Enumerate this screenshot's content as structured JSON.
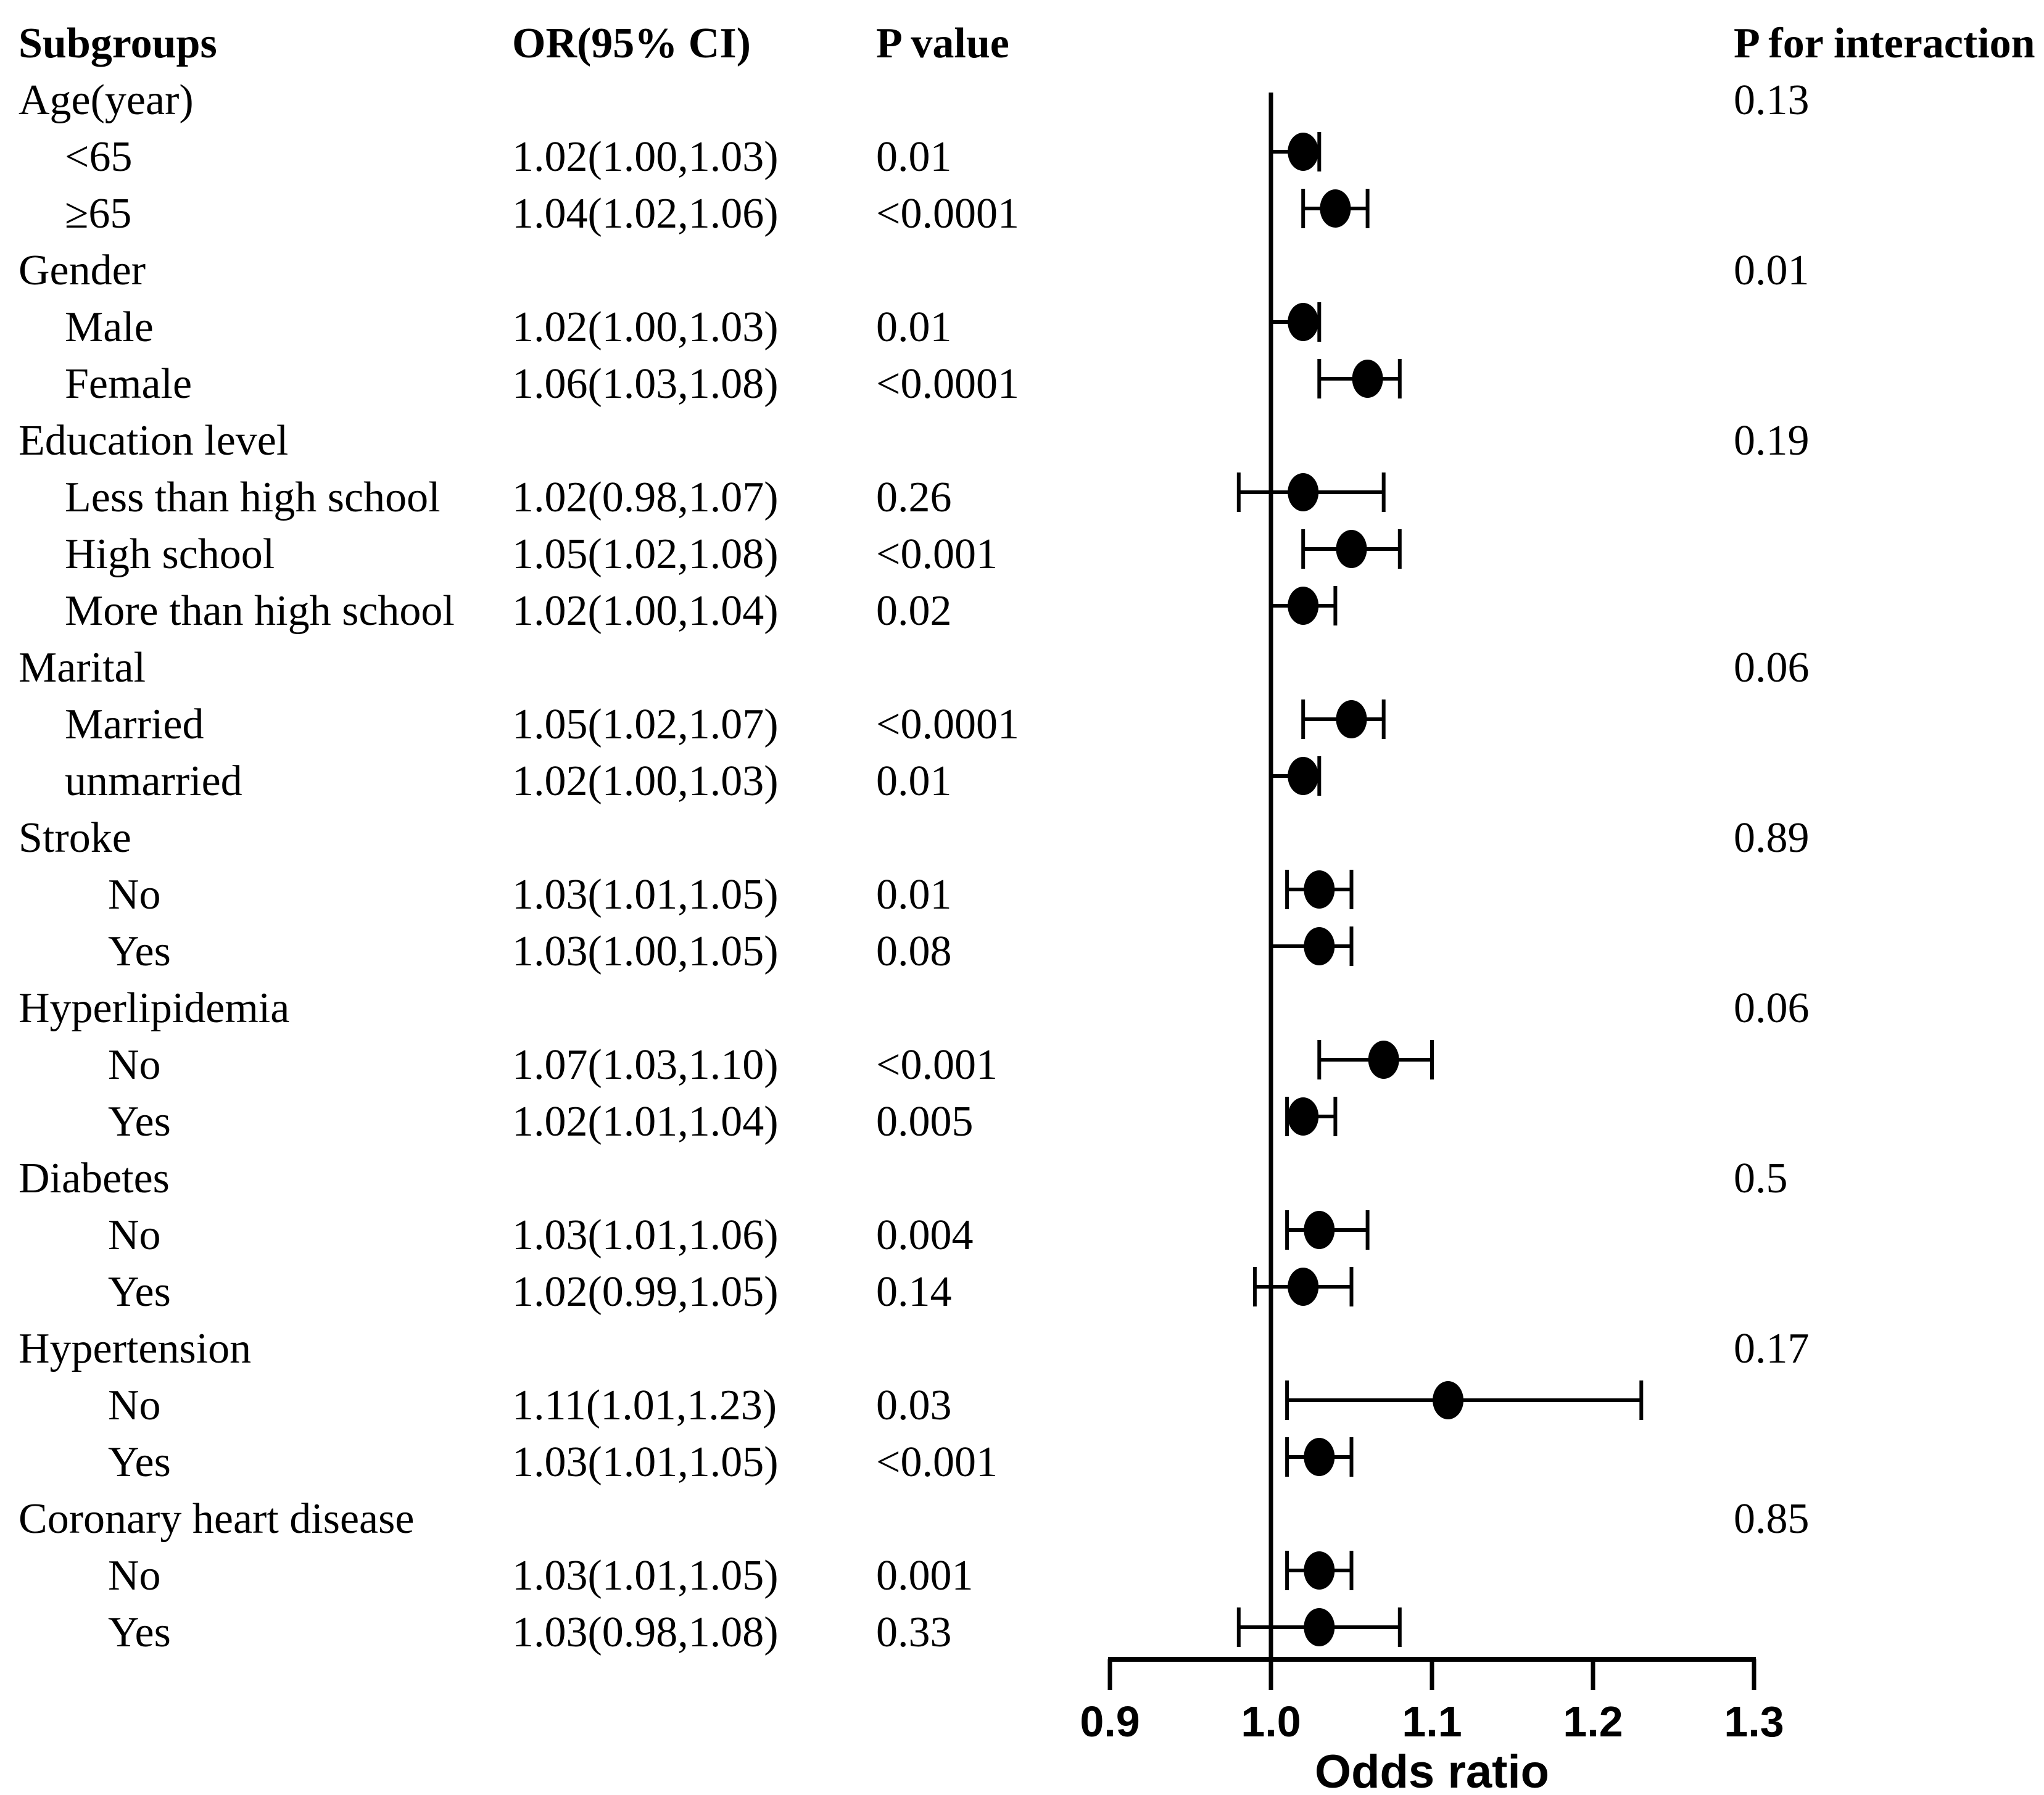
{
  "columns": {
    "subgroups": "Subgroups",
    "or_ci": "OR(95% CI)",
    "p_value": "P value",
    "p_interaction": "P for interaction"
  },
  "colors": {
    "foreground": "#000000",
    "background": "#ffffff"
  },
  "chart_data": {
    "type": "scatter",
    "subtype": "forest",
    "title": "",
    "xlabel": "Odds ratio",
    "xlim": [
      0.9,
      1.3
    ],
    "xticks": [
      0.9,
      1.0,
      1.1,
      1.2,
      1.3
    ],
    "reference_line": 1.0,
    "grid": false,
    "legend": false,
    "rows": [
      {
        "kind": "group",
        "label": "Age(year)",
        "p_interaction": "0.13"
      },
      {
        "kind": "item",
        "label": "<65",
        "indent": 1,
        "or": 1.02,
        "ci_low": 1.0,
        "ci_high": 1.03,
        "or_ci": "1.02(1.00,1.03)",
        "p_value": "0.01"
      },
      {
        "kind": "item",
        "label": "≥65",
        "indent": 1,
        "or": 1.04,
        "ci_low": 1.02,
        "ci_high": 1.06,
        "or_ci": "1.04(1.02,1.06)",
        "p_value": "<0.0001"
      },
      {
        "kind": "group",
        "label": "Gender",
        "p_interaction": "0.01"
      },
      {
        "kind": "item",
        "label": "Male",
        "indent": 1,
        "or": 1.02,
        "ci_low": 1.0,
        "ci_high": 1.03,
        "or_ci": "1.02(1.00,1.03)",
        "p_value": "0.01"
      },
      {
        "kind": "item",
        "label": "Female",
        "indent": 1,
        "or": 1.06,
        "ci_low": 1.03,
        "ci_high": 1.08,
        "or_ci": "1.06(1.03,1.08)",
        "p_value": "<0.0001"
      },
      {
        "kind": "group",
        "label": "Education level",
        "p_interaction": "0.19"
      },
      {
        "kind": "item",
        "label": "Less than high school",
        "indent": 1,
        "or": 1.02,
        "ci_low": 0.98,
        "ci_high": 1.07,
        "or_ci": "1.02(0.98,1.07)",
        "p_value": "0.26"
      },
      {
        "kind": "item",
        "label": "High school",
        "indent": 1,
        "or": 1.05,
        "ci_low": 1.02,
        "ci_high": 1.08,
        "or_ci": "1.05(1.02,1.08)",
        "p_value": "<0.001"
      },
      {
        "kind": "item",
        "label": "More than high school",
        "indent": 1,
        "or": 1.02,
        "ci_low": 1.0,
        "ci_high": 1.04,
        "or_ci": "1.02(1.00,1.04)",
        "p_value": "0.02"
      },
      {
        "kind": "group",
        "label": "Marital",
        "p_interaction": "0.06"
      },
      {
        "kind": "item",
        "label": "Married",
        "indent": 1,
        "or": 1.05,
        "ci_low": 1.02,
        "ci_high": 1.07,
        "or_ci": "1.05(1.02,1.07)",
        "p_value": "<0.0001"
      },
      {
        "kind": "item",
        "label": "unmarried",
        "indent": 1,
        "or": 1.02,
        "ci_low": 1.0,
        "ci_high": 1.03,
        "or_ci": "1.02(1.00,1.03)",
        "p_value": "0.01"
      },
      {
        "kind": "group",
        "label": "Stroke",
        "p_interaction": "0.89"
      },
      {
        "kind": "item",
        "label": "No",
        "indent": 2,
        "or": 1.03,
        "ci_low": 1.01,
        "ci_high": 1.05,
        "or_ci": "1.03(1.01,1.05)",
        "p_value": "0.01"
      },
      {
        "kind": "item",
        "label": "Yes",
        "indent": 2,
        "or": 1.03,
        "ci_low": 1.0,
        "ci_high": 1.05,
        "or_ci": "1.03(1.00,1.05)",
        "p_value": "0.08"
      },
      {
        "kind": "group",
        "label": "Hyperlipidemia",
        "p_interaction": "0.06"
      },
      {
        "kind": "item",
        "label": "No",
        "indent": 2,
        "or": 1.07,
        "ci_low": 1.03,
        "ci_high": 1.1,
        "or_ci": "1.07(1.03,1.10)",
        "p_value": "<0.001"
      },
      {
        "kind": "item",
        "label": "Yes",
        "indent": 2,
        "or": 1.02,
        "ci_low": 1.01,
        "ci_high": 1.04,
        "or_ci": "1.02(1.01,1.04)",
        "p_value": "0.005"
      },
      {
        "kind": "group",
        "label": "Diabetes",
        "p_interaction": "0.5"
      },
      {
        "kind": "item",
        "label": "No",
        "indent": 2,
        "or": 1.03,
        "ci_low": 1.01,
        "ci_high": 1.06,
        "or_ci": "1.03(1.01,1.06)",
        "p_value": "0.004"
      },
      {
        "kind": "item",
        "label": "Yes",
        "indent": 2,
        "or": 1.02,
        "ci_low": 0.99,
        "ci_high": 1.05,
        "or_ci": "1.02(0.99,1.05)",
        "p_value": "0.14"
      },
      {
        "kind": "group",
        "label": "Hypertension",
        "p_interaction": "0.17"
      },
      {
        "kind": "item",
        "label": "No",
        "indent": 2,
        "or": 1.11,
        "ci_low": 1.01,
        "ci_high": 1.23,
        "or_ci": "1.11(1.01,1.23)",
        "p_value": "0.03"
      },
      {
        "kind": "item",
        "label": "Yes",
        "indent": 2,
        "or": 1.03,
        "ci_low": 1.01,
        "ci_high": 1.05,
        "or_ci": "1.03(1.01,1.05)",
        "p_value": "<0.001"
      },
      {
        "kind": "group",
        "label": "Coronary heart disease",
        "p_interaction": "0.85"
      },
      {
        "kind": "item",
        "label": "No",
        "indent": 2,
        "or": 1.03,
        "ci_low": 1.01,
        "ci_high": 1.05,
        "or_ci": "1.03(1.01,1.05)",
        "p_value": "0.001"
      },
      {
        "kind": "item",
        "label": "Yes",
        "indent": 2,
        "or": 1.03,
        "ci_low": 0.98,
        "ci_high": 1.08,
        "or_ci": "1.03(0.98,1.08)",
        "p_value": "0.33"
      }
    ]
  }
}
